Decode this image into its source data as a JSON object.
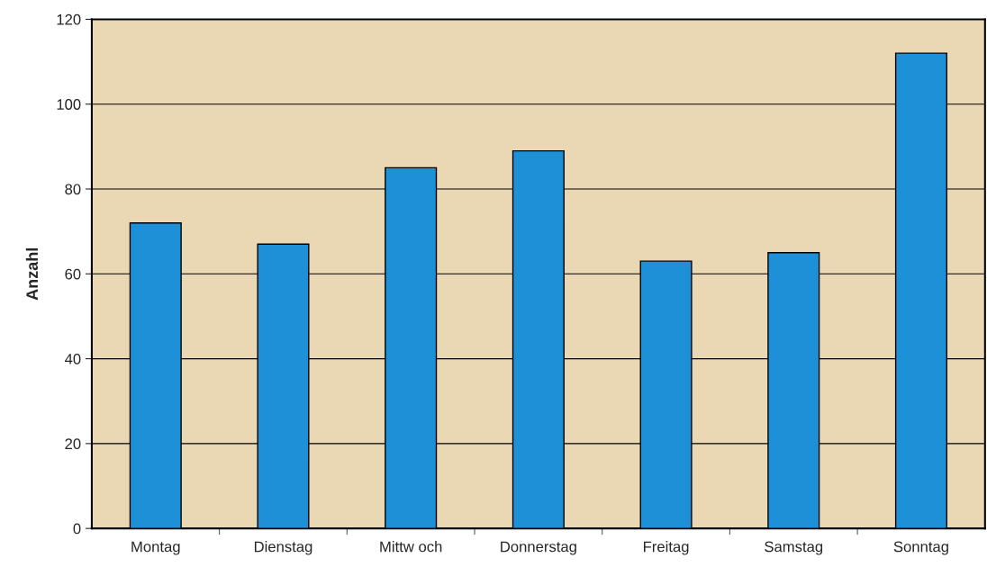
{
  "chart_data": {
    "type": "bar",
    "ylabel": "Anzahl",
    "categories": [
      "Montag",
      "Dienstag",
      "Mittw och",
      "Donnerstag",
      "Freitag",
      "Samstag",
      "Sonntag"
    ],
    "values": [
      72,
      67,
      85,
      89,
      63,
      65,
      112
    ],
    "color": "#1e90d8",
    "ylim": [
      0,
      120
    ],
    "yticks": [
      0,
      20,
      40,
      60,
      80,
      100,
      120
    ],
    "grid": "y"
  }
}
